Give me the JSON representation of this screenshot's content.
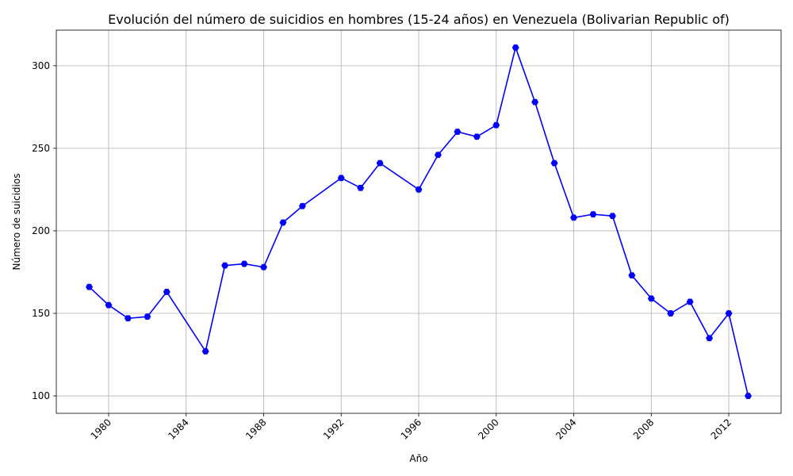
{
  "chart_data": {
    "type": "line",
    "title": "Evolución del número de suicidios en hombres (15-24 años) en Venezuela (Bolivarian Republic of)",
    "xlabel": "Año",
    "ylabel": "Número de suicidios",
    "x": [
      1979,
      1980,
      1981,
      1982,
      1983,
      1985,
      1986,
      1987,
      1988,
      1989,
      1990,
      1992,
      1993,
      1994,
      1996,
      1997,
      1998,
      1999,
      2000,
      2001,
      2002,
      2003,
      2004,
      2005,
      2006,
      2007,
      2008,
      2009,
      2010,
      2011,
      2012,
      2013
    ],
    "values": [
      166,
      155,
      147,
      148,
      163,
      127,
      179,
      180,
      178,
      205,
      215,
      232,
      226,
      241,
      225,
      246,
      260,
      257,
      264,
      311,
      278,
      241,
      208,
      210,
      209,
      173,
      159,
      150,
      157,
      135,
      150,
      100
    ],
    "x_ticks": [
      "1980",
      "1984",
      "1988",
      "1992",
      "1996",
      "2000",
      "2004",
      "2008",
      "2012"
    ],
    "y_ticks": [
      "100",
      "150",
      "200",
      "250",
      "300"
    ],
    "xlim": [
      1977.3,
      2014.7
    ],
    "ylim": [
      89.45,
      321.55
    ],
    "grid": true,
    "line_color": "#0000ff",
    "marker": "hexagon"
  }
}
